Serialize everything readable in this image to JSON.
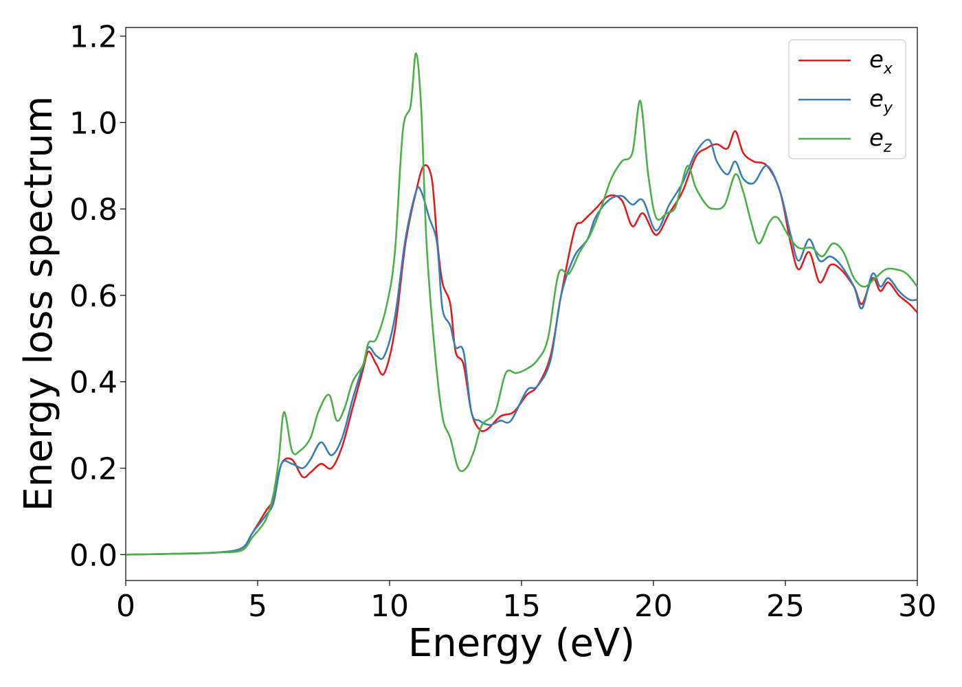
{
  "chart_data": {
    "type": "line",
    "title": "",
    "xlabel": "Energy (eV)",
    "ylabel": "Energy loss spectrum",
    "xlim": [
      0,
      30
    ],
    "ylim": [
      -0.06,
      1.22
    ],
    "xticks": [
      0,
      5,
      10,
      15,
      20,
      25,
      30
    ],
    "xtick_labels": [
      "0",
      "5",
      "10",
      "15",
      "20",
      "25",
      "30"
    ],
    "yticks": [
      0.0,
      0.2,
      0.4,
      0.6,
      0.8,
      1.0,
      1.2
    ],
    "ytick_labels": [
      "0.0",
      "0.2",
      "0.4",
      "0.6",
      "0.8",
      "1.0",
      "1.2"
    ],
    "grid": false,
    "legend_position": "top-right",
    "series": [
      {
        "name": "e_x",
        "legend_base": "e",
        "legend_sub": "x",
        "color": "#e41a1c",
        "points": [
          [
            0,
            0
          ],
          [
            2,
            0.002
          ],
          [
            3.5,
            0.005
          ],
          [
            4.4,
            0.015
          ],
          [
            4.8,
            0.05
          ],
          [
            5.3,
            0.1
          ],
          [
            5.6,
            0.13
          ],
          [
            5.9,
            0.21
          ],
          [
            6.3,
            0.22
          ],
          [
            6.7,
            0.18
          ],
          [
            7.0,
            0.19
          ],
          [
            7.4,
            0.21
          ],
          [
            7.8,
            0.2
          ],
          [
            8.2,
            0.25
          ],
          [
            8.6,
            0.34
          ],
          [
            9.0,
            0.43
          ],
          [
            9.2,
            0.47
          ],
          [
            9.5,
            0.44
          ],
          [
            9.8,
            0.42
          ],
          [
            10.2,
            0.52
          ],
          [
            10.6,
            0.72
          ],
          [
            11.0,
            0.84
          ],
          [
            11.3,
            0.9
          ],
          [
            11.6,
            0.87
          ],
          [
            11.8,
            0.73
          ],
          [
            12.0,
            0.63
          ],
          [
            12.3,
            0.58
          ],
          [
            12.5,
            0.47
          ],
          [
            12.8,
            0.44
          ],
          [
            13.1,
            0.33
          ],
          [
            13.4,
            0.29
          ],
          [
            13.7,
            0.29
          ],
          [
            14.2,
            0.32
          ],
          [
            14.7,
            0.33
          ],
          [
            15.2,
            0.37
          ],
          [
            15.6,
            0.39
          ],
          [
            16.1,
            0.46
          ],
          [
            16.5,
            0.6
          ],
          [
            17.0,
            0.75
          ],
          [
            17.3,
            0.77
          ],
          [
            17.8,
            0.8
          ],
          [
            18.3,
            0.83
          ],
          [
            18.8,
            0.82
          ],
          [
            19.2,
            0.76
          ],
          [
            19.6,
            0.79
          ],
          [
            20.1,
            0.74
          ],
          [
            20.6,
            0.79
          ],
          [
            21.1,
            0.84
          ],
          [
            21.6,
            0.92
          ],
          [
            22.0,
            0.94
          ],
          [
            22.4,
            0.95
          ],
          [
            22.8,
            0.94
          ],
          [
            23.1,
            0.98
          ],
          [
            23.4,
            0.93
          ],
          [
            23.8,
            0.91
          ],
          [
            24.3,
            0.9
          ],
          [
            24.8,
            0.84
          ],
          [
            25.2,
            0.72
          ],
          [
            25.5,
            0.66
          ],
          [
            25.9,
            0.7
          ],
          [
            26.3,
            0.63
          ],
          [
            26.7,
            0.67
          ],
          [
            27.1,
            0.66
          ],
          [
            27.6,
            0.62
          ],
          [
            27.9,
            0.58
          ],
          [
            28.3,
            0.64
          ],
          [
            28.6,
            0.61
          ],
          [
            28.9,
            0.63
          ],
          [
            29.3,
            0.6
          ],
          [
            29.7,
            0.58
          ],
          [
            30.0,
            0.56
          ]
        ]
      },
      {
        "name": "e_y",
        "legend_base": "e",
        "legend_sub": "y",
        "color": "#377eb8",
        "points": [
          [
            0,
            0
          ],
          [
            2,
            0.002
          ],
          [
            3.5,
            0.005
          ],
          [
            4.4,
            0.015
          ],
          [
            4.8,
            0.05
          ],
          [
            5.3,
            0.09
          ],
          [
            5.6,
            0.12
          ],
          [
            5.9,
            0.21
          ],
          [
            6.3,
            0.21
          ],
          [
            6.7,
            0.2
          ],
          [
            7.0,
            0.22
          ],
          [
            7.4,
            0.26
          ],
          [
            7.8,
            0.23
          ],
          [
            8.2,
            0.27
          ],
          [
            8.6,
            0.36
          ],
          [
            9.0,
            0.44
          ],
          [
            9.2,
            0.48
          ],
          [
            9.5,
            0.46
          ],
          [
            9.8,
            0.46
          ],
          [
            10.2,
            0.55
          ],
          [
            10.6,
            0.73
          ],
          [
            11.0,
            0.84
          ],
          [
            11.2,
            0.84
          ],
          [
            11.5,
            0.78
          ],
          [
            11.8,
            0.72
          ],
          [
            12.0,
            0.57
          ],
          [
            12.3,
            0.53
          ],
          [
            12.5,
            0.48
          ],
          [
            12.8,
            0.47
          ],
          [
            13.1,
            0.33
          ],
          [
            13.4,
            0.31
          ],
          [
            13.8,
            0.3
          ],
          [
            14.2,
            0.31
          ],
          [
            14.6,
            0.31
          ],
          [
            15.2,
            0.38
          ],
          [
            15.6,
            0.39
          ],
          [
            16.1,
            0.45
          ],
          [
            16.5,
            0.6
          ],
          [
            17.0,
            0.69
          ],
          [
            17.5,
            0.73
          ],
          [
            17.8,
            0.78
          ],
          [
            18.3,
            0.82
          ],
          [
            18.8,
            0.83
          ],
          [
            19.2,
            0.81
          ],
          [
            19.6,
            0.82
          ],
          [
            20.1,
            0.75
          ],
          [
            20.6,
            0.81
          ],
          [
            21.1,
            0.86
          ],
          [
            21.6,
            0.93
          ],
          [
            22.1,
            0.96
          ],
          [
            22.4,
            0.91
          ],
          [
            22.8,
            0.88
          ],
          [
            23.1,
            0.91
          ],
          [
            23.4,
            0.87
          ],
          [
            23.8,
            0.86
          ],
          [
            24.3,
            0.9
          ],
          [
            24.8,
            0.84
          ],
          [
            25.2,
            0.74
          ],
          [
            25.5,
            0.68
          ],
          [
            25.9,
            0.73
          ],
          [
            26.3,
            0.68
          ],
          [
            26.7,
            0.69
          ],
          [
            27.1,
            0.67
          ],
          [
            27.6,
            0.62
          ],
          [
            27.9,
            0.57
          ],
          [
            28.3,
            0.65
          ],
          [
            28.6,
            0.62
          ],
          [
            28.9,
            0.64
          ],
          [
            29.3,
            0.61
          ],
          [
            29.7,
            0.59
          ],
          [
            30.0,
            0.59
          ]
        ]
      },
      {
        "name": "e_z",
        "legend_base": "e",
        "legend_sub": "z",
        "color": "#4daf4a",
        "points": [
          [
            0,
            0
          ],
          [
            2,
            0.002
          ],
          [
            3.5,
            0.005
          ],
          [
            4.4,
            0.01
          ],
          [
            4.8,
            0.04
          ],
          [
            5.3,
            0.08
          ],
          [
            5.6,
            0.14
          ],
          [
            5.8,
            0.22
          ],
          [
            6.0,
            0.33
          ],
          [
            6.3,
            0.24
          ],
          [
            6.6,
            0.24
          ],
          [
            7.0,
            0.27
          ],
          [
            7.3,
            0.33
          ],
          [
            7.7,
            0.37
          ],
          [
            8.0,
            0.31
          ],
          [
            8.3,
            0.34
          ],
          [
            8.6,
            0.4
          ],
          [
            9.0,
            0.44
          ],
          [
            9.2,
            0.49
          ],
          [
            9.5,
            0.5
          ],
          [
            9.9,
            0.58
          ],
          [
            10.2,
            0.7
          ],
          [
            10.5,
            0.98
          ],
          [
            10.8,
            1.04
          ],
          [
            11.0,
            1.16
          ],
          [
            11.2,
            1.03
          ],
          [
            11.4,
            0.72
          ],
          [
            11.7,
            0.48
          ],
          [
            12.0,
            0.32
          ],
          [
            12.3,
            0.27
          ],
          [
            12.6,
            0.2
          ],
          [
            12.9,
            0.2
          ],
          [
            13.2,
            0.24
          ],
          [
            13.5,
            0.3
          ],
          [
            14.0,
            0.33
          ],
          [
            14.4,
            0.42
          ],
          [
            14.8,
            0.42
          ],
          [
            15.2,
            0.43
          ],
          [
            15.6,
            0.45
          ],
          [
            16.0,
            0.5
          ],
          [
            16.4,
            0.65
          ],
          [
            16.8,
            0.65
          ],
          [
            17.2,
            0.7
          ],
          [
            17.6,
            0.74
          ],
          [
            18.0,
            0.8
          ],
          [
            18.4,
            0.87
          ],
          [
            18.8,
            0.91
          ],
          [
            19.2,
            0.93
          ],
          [
            19.5,
            1.05
          ],
          [
            19.8,
            0.88
          ],
          [
            20.1,
            0.78
          ],
          [
            20.5,
            0.79
          ],
          [
            20.8,
            0.8
          ],
          [
            21.0,
            0.84
          ],
          [
            21.3,
            0.9
          ],
          [
            21.6,
            0.85
          ],
          [
            22.0,
            0.81
          ],
          [
            22.3,
            0.8
          ],
          [
            22.7,
            0.81
          ],
          [
            23.1,
            0.88
          ],
          [
            23.4,
            0.84
          ],
          [
            23.7,
            0.77
          ],
          [
            24.0,
            0.72
          ],
          [
            24.4,
            0.77
          ],
          [
            24.7,
            0.78
          ],
          [
            25.1,
            0.74
          ],
          [
            25.5,
            0.71
          ],
          [
            26.0,
            0.71
          ],
          [
            26.4,
            0.69
          ],
          [
            26.8,
            0.72
          ],
          [
            27.2,
            0.7
          ],
          [
            27.6,
            0.64
          ],
          [
            28.0,
            0.62
          ],
          [
            28.4,
            0.64
          ],
          [
            28.8,
            0.66
          ],
          [
            29.2,
            0.66
          ],
          [
            29.6,
            0.65
          ],
          [
            30.0,
            0.62
          ]
        ]
      }
    ]
  }
}
